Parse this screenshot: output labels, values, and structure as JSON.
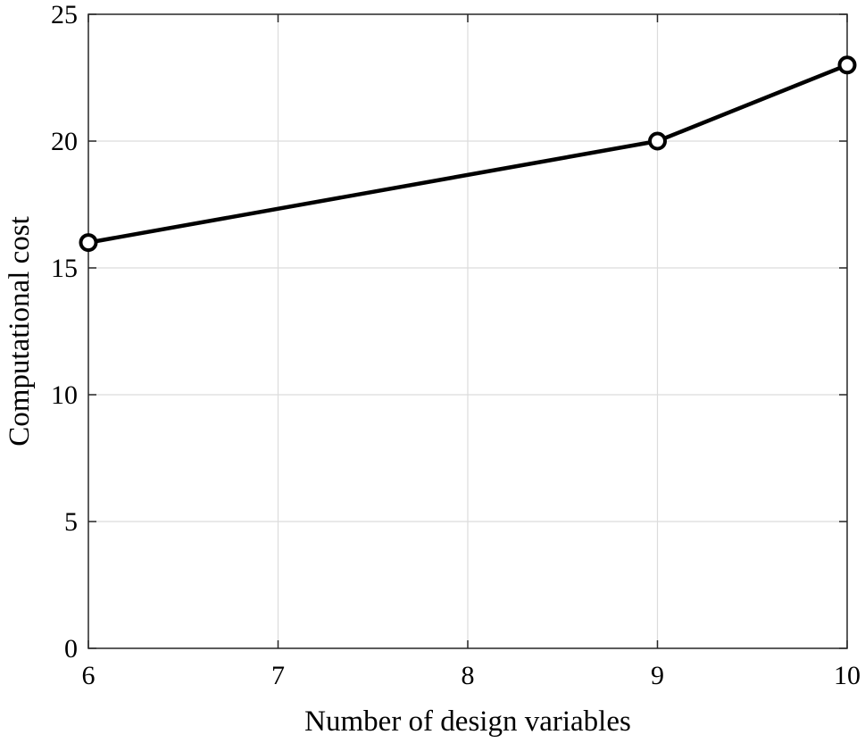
{
  "chart_data": {
    "type": "line",
    "title": "",
    "xlabel": "Number of design variables",
    "ylabel": "Computational cost",
    "xlim": [
      6,
      10
    ],
    "ylim": [
      0,
      25
    ],
    "xticks": [
      6,
      7,
      8,
      9,
      10
    ],
    "yticks": [
      0,
      5,
      10,
      15,
      20,
      25
    ],
    "grid": true,
    "legend": "none",
    "series": [
      {
        "x": [
          6,
          9,
          10
        ],
        "y": [
          16,
          20,
          23
        ],
        "color": "#000000",
        "marker": "circle"
      }
    ]
  }
}
